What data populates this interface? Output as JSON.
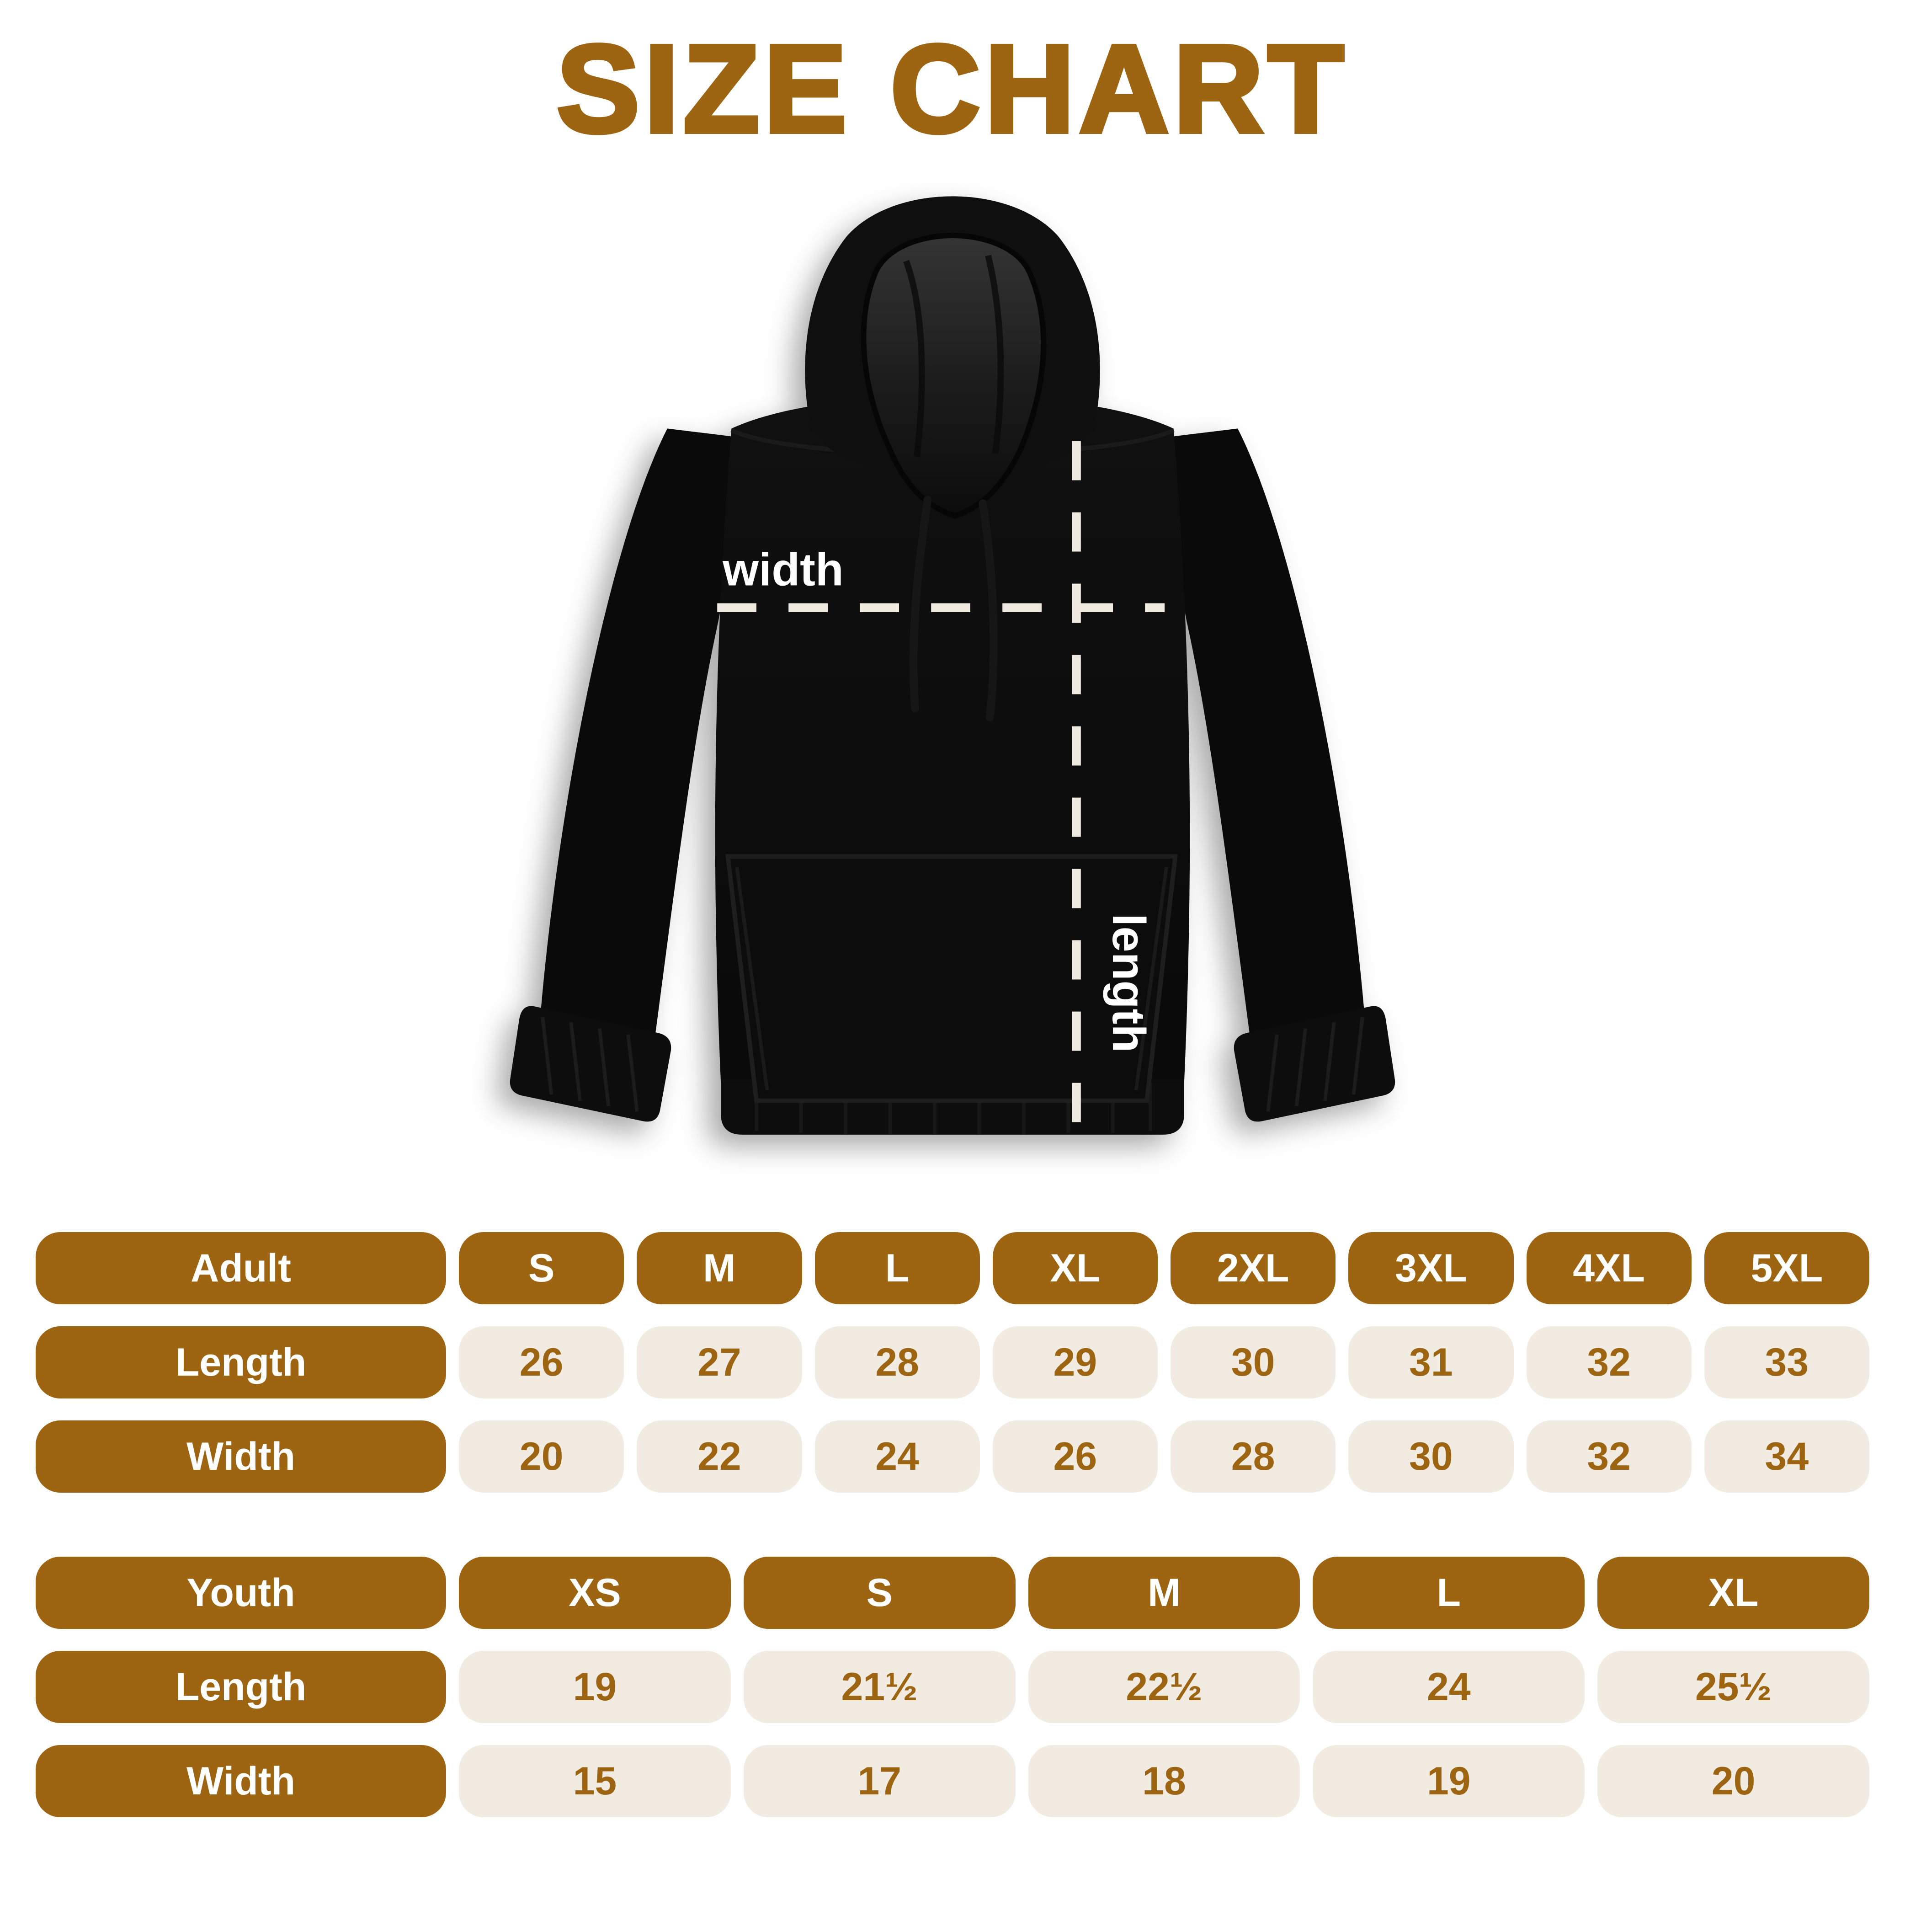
{
  "title": "SIZE CHART",
  "hoodie": {
    "width_label": "width",
    "length_label": "length"
  },
  "colors": {
    "brown": "#9D6512",
    "cream": "#F1EBE1",
    "dash_line": "#EFE9E0",
    "hoodie_black": "#0B0B0B",
    "background": "#FFFFFF",
    "header_text": "#FFFFFF"
  },
  "tables": {
    "adult": {
      "header": {
        "label": "Adult",
        "cells": [
          "S",
          "M",
          "L",
          "XL",
          "2XL",
          "3XL",
          "4XL",
          "5XL"
        ],
        "style": "header"
      },
      "length": {
        "label": "Length",
        "cells": [
          "26",
          "27",
          "28",
          "29",
          "30",
          "31",
          "32",
          "33"
        ],
        "style": "data"
      },
      "width": {
        "label": "Width",
        "cells": [
          "20",
          "22",
          "24",
          "26",
          "28",
          "30",
          "32",
          "34"
        ],
        "style": "data"
      }
    },
    "youth": {
      "header": {
        "label": "Youth",
        "cells": [
          "XS",
          "S",
          "M",
          "L",
          "XL"
        ],
        "style": "header"
      },
      "length": {
        "label": "Length",
        "cells": [
          "19",
          "21½",
          "22½",
          "24",
          "25½"
        ],
        "style": "data"
      },
      "width": {
        "label": "Width",
        "cells": [
          "15",
          "17",
          "18",
          "19",
          "20"
        ],
        "style": "data"
      }
    }
  },
  "chart_data": [
    {
      "type": "table",
      "title": "Adult hoodie sizes (inches)",
      "columns": [
        "Adult",
        "S",
        "M",
        "L",
        "XL",
        "2XL",
        "3XL",
        "4XL",
        "5XL"
      ],
      "rows": [
        [
          "Length",
          26,
          27,
          28,
          29,
          30,
          31,
          32,
          33
        ],
        [
          "Width",
          20,
          22,
          24,
          26,
          28,
          30,
          32,
          34
        ]
      ]
    },
    {
      "type": "table",
      "title": "Youth hoodie sizes (inches)",
      "columns": [
        "Youth",
        "XS",
        "S",
        "M",
        "L",
        "XL"
      ],
      "rows": [
        [
          "Length",
          19,
          "21½",
          "22½",
          24,
          "25½"
        ],
        [
          "Width",
          15,
          17,
          18,
          19,
          20
        ]
      ]
    }
  ]
}
